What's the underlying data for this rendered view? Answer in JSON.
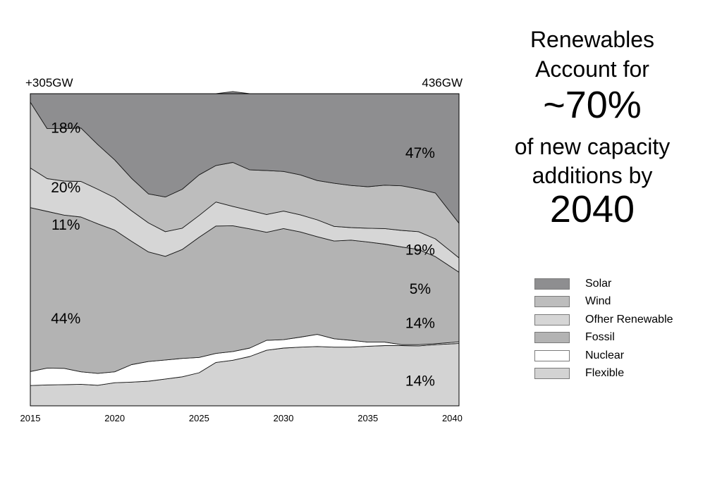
{
  "headline": {
    "line1": "Renewables",
    "line2": "Account for",
    "big1": "~70%",
    "line3": "of new capacity",
    "line4": "additions by",
    "big2": "2040"
  },
  "chart_data": {
    "type": "area",
    "stacked": true,
    "x_ticks": [
      "2015",
      "2020",
      "2025",
      "2030",
      "2035",
      "2040"
    ],
    "x": [
      2015,
      2016,
      2017,
      2018,
      2019,
      2020,
      2021,
      2022,
      2023,
      2024,
      2025,
      2026,
      2027,
      2028,
      2029,
      2030,
      2031,
      2032,
      2033,
      2034,
      2035,
      2036,
      2037,
      2038,
      2039,
      2040
    ],
    "xlim": [
      2015,
      2040.4
    ],
    "ylim": [
      0,
      100
    ],
    "y_axis_visible": false,
    "grid": false,
    "top_left_label": "+305GW",
    "top_right_label": "436GW",
    "series": [
      {
        "name": "Flexible",
        "color": "#d3d3d3",
        "values": [
          6.5,
          6.7,
          6.8,
          6.9,
          6.6,
          7.4,
          7.6,
          7.9,
          8.6,
          9.3,
          10.6,
          13.9,
          14.6,
          15.8,
          17.8,
          18.5,
          18.8,
          19.0,
          18.8,
          18.8,
          19.1,
          19.3,
          19.3,
          19.2,
          19.6,
          20.0
        ]
      },
      {
        "name": "Nuclear",
        "color": "#ffffff",
        "values": [
          4.5,
          5.4,
          5.2,
          4.0,
          3.8,
          3.5,
          5.6,
          6.3,
          6.1,
          5.9,
          4.9,
          2.9,
          2.8,
          2.7,
          3.2,
          2.7,
          3.2,
          3.9,
          2.7,
          2.2,
          1.3,
          1.1,
          0.3,
          0.4,
          0.3,
          0.5
        ]
      },
      {
        "name": "Fossil",
        "color": "#b3b3b3",
        "values": [
          52.5,
          50.2,
          49.1,
          49.6,
          47.9,
          45.4,
          39.5,
          35.1,
          33.2,
          34.9,
          38.5,
          40.8,
          40.3,
          38.2,
          34.6,
          35.6,
          33.7,
          31.3,
          31.3,
          32.1,
          32.1,
          31.4,
          31.3,
          30.5,
          27.9,
          22.3
        ]
      },
      {
        "name": "Ofher Renewable",
        "color": "#d6d6d6",
        "values": [
          12.7,
          10.5,
          10.9,
          11.4,
          11.1,
          10.4,
          9.8,
          9.3,
          7.9,
          6.8,
          7.0,
          7.7,
          6.2,
          5.9,
          5.7,
          5.6,
          5.5,
          5.4,
          4.7,
          4.0,
          4.4,
          5.0,
          5.3,
          5.7,
          5.7,
          4.6
        ]
      },
      {
        "name": "Wind",
        "color": "#bdbdbd",
        "values": [
          21.1,
          16.0,
          16.8,
          17.1,
          14.3,
          12.1,
          10.4,
          9.3,
          11.1,
          12.5,
          13.0,
          11.7,
          14.1,
          13.0,
          14.1,
          12.7,
          12.8,
          12.6,
          13.8,
          13.5,
          13.3,
          13.9,
          14.3,
          13.7,
          14.7,
          11.1
        ]
      },
      {
        "name": "Solar",
        "color": "#8e8e90",
        "values": [
          2.7,
          11.2,
          11.2,
          11.0,
          16.3,
          21.2,
          27.1,
          32.1,
          33.1,
          30.6,
          26.0,
          23.0,
          22.7,
          24.4,
          24.6,
          24.9,
          26.0,
          27.8,
          28.7,
          29.4,
          29.8,
          29.3,
          29.5,
          30.5,
          31.8,
          41.5
        ]
      }
    ],
    "annotations": [
      {
        "text": "18%",
        "x": 2017.1,
        "y": 89
      },
      {
        "text": "20%",
        "x": 2017.1,
        "y": 70
      },
      {
        "text": "11%",
        "x": 2017.1,
        "y": 58
      },
      {
        "text": "44%",
        "x": 2017.1,
        "y": 28
      },
      {
        "text": "47%",
        "x": 2038.1,
        "y": 81
      },
      {
        "text": "19%",
        "x": 2038.1,
        "y": 50
      },
      {
        "text": "5%",
        "x": 2038.1,
        "y": 37.5
      },
      {
        "text": "14%",
        "x": 2038.1,
        "y": 26.5
      },
      {
        "text": "14%",
        "x": 2038.1,
        "y": 8
      }
    ]
  }
}
